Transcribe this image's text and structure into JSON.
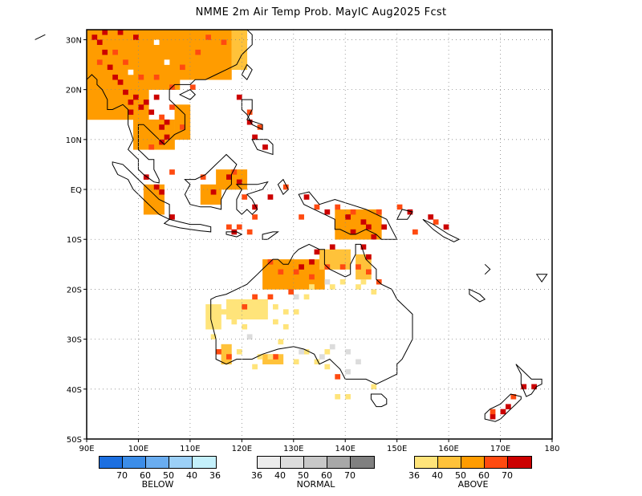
{
  "title": "NMME 2m Air Temp Prob. MayIC  Aug2025 Fcst",
  "map": {
    "lon_range": [
      90,
      180
    ],
    "lat_range": [
      -50,
      32
    ],
    "lat_labels": [
      "30N",
      "20N",
      "10N",
      "EQ",
      "10S",
      "20S",
      "30S",
      "40S",
      "50S"
    ],
    "lon_labels": [
      "90E",
      "100E",
      "110E",
      "120E",
      "130E",
      "140E",
      "150E",
      "160E",
      "170E",
      "180"
    ],
    "grid": "dotted"
  },
  "legends": [
    {
      "name": "BELOW",
      "colors": [
        "#1c6fe0",
        "#3c8de8",
        "#6aadf0",
        "#9cd0f7",
        "#c4f0fb"
      ],
      "ticks": [
        "70",
        "60",
        "50",
        "40",
        "36"
      ]
    },
    {
      "name": "NORMAL",
      "colors": [
        "#ececec",
        "#dcdcdc",
        "#c8c8c8",
        "#a8a8a8",
        "#808080"
      ],
      "ticks": [
        "36",
        "40",
        "50",
        "60",
        "70"
      ]
    },
    {
      "name": "ABOVE",
      "colors": [
        "#ffe47a",
        "#ffc23a",
        "#ff9c00",
        "#ff4a10",
        "#cc0000"
      ],
      "ticks": [
        "36",
        "40",
        "50",
        "60",
        "70"
      ]
    }
  ]
}
